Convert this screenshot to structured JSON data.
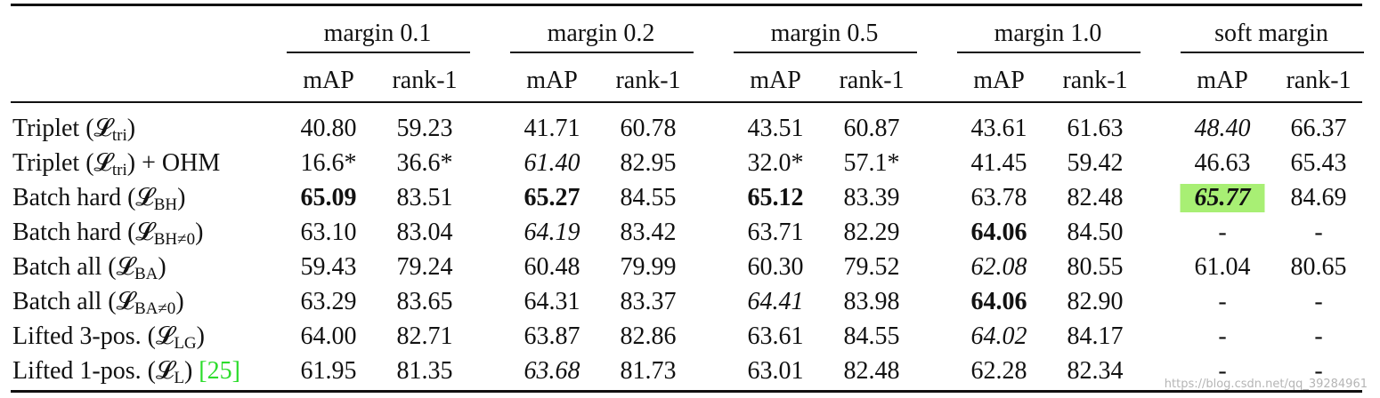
{
  "groups": [
    "margin 0.1",
    "margin 0.2",
    "margin 0.5",
    "margin 1.0",
    "soft margin"
  ],
  "subheaders": [
    "mAP",
    "rank-1"
  ],
  "rows": [
    {
      "label": "Triplet (",
      "sym": "𝓛",
      "sub": "tri",
      "tail": ")",
      "cells": [
        {
          "v": "40.80"
        },
        {
          "v": "59.23"
        },
        {
          "v": "41.71"
        },
        {
          "v": "60.78"
        },
        {
          "v": "43.51"
        },
        {
          "v": "60.87"
        },
        {
          "v": "43.61"
        },
        {
          "v": "61.63"
        },
        {
          "v": "48.40",
          "i": true
        },
        {
          "v": "66.37"
        }
      ]
    },
    {
      "label": "Triplet (",
      "sym": "𝓛",
      "sub": "tri",
      "tail": ") + OHM",
      "cells": [
        {
          "v": "16.6*"
        },
        {
          "v": "36.6*"
        },
        {
          "v": "61.40",
          "i": true
        },
        {
          "v": "82.95"
        },
        {
          "v": "32.0*"
        },
        {
          "v": "57.1*"
        },
        {
          "v": "41.45"
        },
        {
          "v": "59.42"
        },
        {
          "v": "46.63"
        },
        {
          "v": "65.43"
        }
      ]
    },
    {
      "label": "Batch hard (",
      "sym": "𝓛",
      "sub": "BH",
      "tail": ")",
      "cells": [
        {
          "v": "65.09",
          "b": true
        },
        {
          "v": "83.51"
        },
        {
          "v": "65.27",
          "b": true
        },
        {
          "v": "84.55"
        },
        {
          "v": "65.12",
          "b": true
        },
        {
          "v": "83.39"
        },
        {
          "v": "63.78"
        },
        {
          "v": "82.48"
        },
        {
          "v": "65.77",
          "b": true,
          "i": true,
          "hl": true
        },
        {
          "v": "84.69"
        }
      ]
    },
    {
      "label": "Batch hard (",
      "sym": "𝓛",
      "sub": "BH≠0",
      "tail": ")",
      "cells": [
        {
          "v": "63.10"
        },
        {
          "v": "83.04"
        },
        {
          "v": "64.19",
          "i": true
        },
        {
          "v": "83.42"
        },
        {
          "v": "63.71"
        },
        {
          "v": "82.29"
        },
        {
          "v": "64.06",
          "b": true
        },
        {
          "v": "84.50"
        },
        {
          "v": "-"
        },
        {
          "v": "-"
        }
      ]
    },
    {
      "label": "Batch all (",
      "sym": "𝓛",
      "sub": "BA",
      "tail": ")",
      "cells": [
        {
          "v": "59.43"
        },
        {
          "v": "79.24"
        },
        {
          "v": "60.48"
        },
        {
          "v": "79.99"
        },
        {
          "v": "60.30"
        },
        {
          "v": "79.52"
        },
        {
          "v": "62.08",
          "i": true
        },
        {
          "v": "80.55"
        },
        {
          "v": "61.04"
        },
        {
          "v": "80.65"
        }
      ]
    },
    {
      "label": "Batch all (",
      "sym": "𝓛",
      "sub": "BA≠0",
      "tail": ")",
      "cells": [
        {
          "v": "63.29"
        },
        {
          "v": "83.65"
        },
        {
          "v": "64.31"
        },
        {
          "v": "83.37"
        },
        {
          "v": "64.41",
          "i": true
        },
        {
          "v": "83.98"
        },
        {
          "v": "64.06",
          "b": true
        },
        {
          "v": "82.90"
        },
        {
          "v": "-"
        },
        {
          "v": "-"
        }
      ]
    },
    {
      "label": "Lifted 3-pos. (",
      "sym": "𝓛",
      "sub": "LG",
      "tail": ")",
      "cells": [
        {
          "v": "64.00"
        },
        {
          "v": "82.71"
        },
        {
          "v": "63.87"
        },
        {
          "v": "82.86"
        },
        {
          "v": "63.61"
        },
        {
          "v": "84.55"
        },
        {
          "v": "64.02",
          "i": true
        },
        {
          "v": "84.17"
        },
        {
          "v": "-"
        },
        {
          "v": "-"
        }
      ]
    },
    {
      "label": "Lifted 1-pos. (",
      "sym": "𝓛",
      "sub": "L",
      "tail": ") ",
      "ref": "[25]",
      "cells": [
        {
          "v": "61.95"
        },
        {
          "v": "81.35"
        },
        {
          "v": "63.68",
          "i": true
        },
        {
          "v": "81.73"
        },
        {
          "v": "63.01"
        },
        {
          "v": "82.48"
        },
        {
          "v": "62.28"
        },
        {
          "v": "82.34"
        },
        {
          "v": "-"
        },
        {
          "v": "-"
        }
      ]
    }
  ],
  "watermark": "https://blog.csdn.net/qq_39284961"
}
